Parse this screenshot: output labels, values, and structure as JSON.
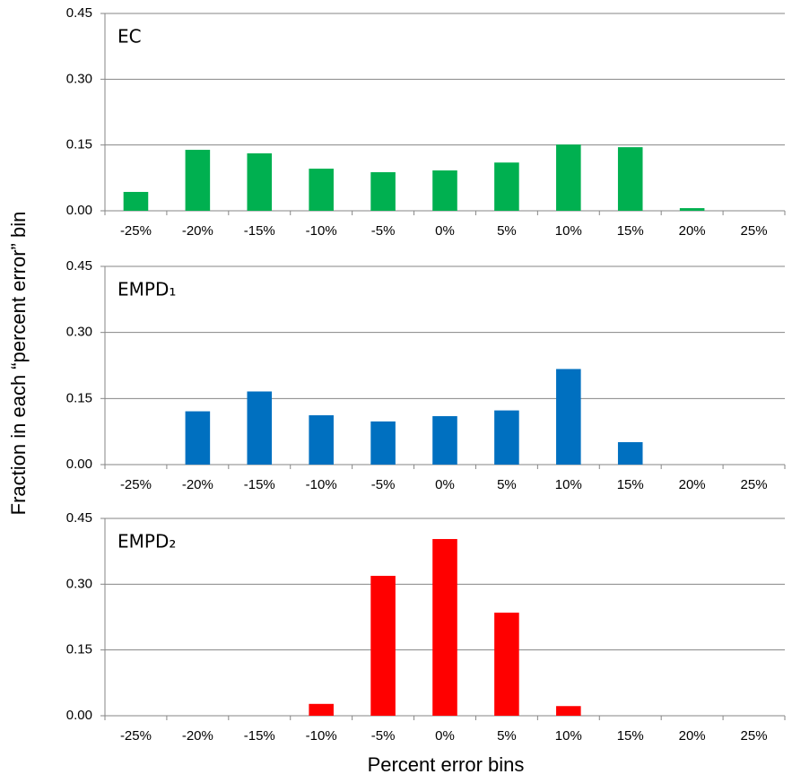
{
  "ylabel": "Fraction in each “percent error” bin",
  "xlabel": "Percent error bins",
  "chart_data": [
    {
      "type": "bar",
      "title": "EC",
      "color": "#00b050",
      "categories": [
        "-25%",
        "-20%",
        "-15%",
        "-10%",
        "-5%",
        "0%",
        "5%",
        "10%",
        "15%",
        "20%",
        "25%"
      ],
      "values": [
        0.043,
        0.139,
        0.131,
        0.096,
        0.088,
        0.092,
        0.11,
        0.151,
        0.145,
        0.006,
        0
      ],
      "ylim": [
        0,
        0.45
      ],
      "yticks": [
        {
          "value": 0,
          "label": "0.00"
        },
        {
          "value": 0.15,
          "label": "0.15"
        },
        {
          "value": 0.3,
          "label": "0.30"
        },
        {
          "value": 0.45,
          "label": "0.45"
        }
      ],
      "grid": true
    },
    {
      "type": "bar",
      "title": "EMPD₁",
      "color": "#0070c0",
      "categories": [
        "-25%",
        "-20%",
        "-15%",
        "-10%",
        "-5%",
        "0%",
        "5%",
        "10%",
        "15%",
        "20%",
        "25%"
      ],
      "values": [
        0,
        0.121,
        0.166,
        0.112,
        0.098,
        0.11,
        0.123,
        0.217,
        0.051,
        0,
        0
      ],
      "ylim": [
        0,
        0.45
      ],
      "yticks": [
        {
          "value": 0,
          "label": "0.00"
        },
        {
          "value": 0.15,
          "label": "0.15"
        },
        {
          "value": 0.3,
          "label": "0.30"
        },
        {
          "value": 0.45,
          "label": "0.45"
        }
      ],
      "grid": true
    },
    {
      "type": "bar",
      "title": "EMPD₂",
      "color": "#ff0000",
      "categories": [
        "-25%",
        "-20%",
        "-15%",
        "-10%",
        "-5%",
        "0%",
        "5%",
        "10%",
        "15%",
        "20%",
        "25%"
      ],
      "values": [
        0,
        0,
        0,
        0.027,
        0.319,
        0.403,
        0.235,
        0.022,
        0,
        0,
        0
      ],
      "ylim": [
        0,
        0.45
      ],
      "yticks": [
        {
          "value": 0,
          "label": "0.00"
        },
        {
          "value": 0.15,
          "label": "0.15"
        },
        {
          "value": 0.3,
          "label": "0.30"
        },
        {
          "value": 0.45,
          "label": "0.45"
        }
      ],
      "grid": true
    }
  ]
}
